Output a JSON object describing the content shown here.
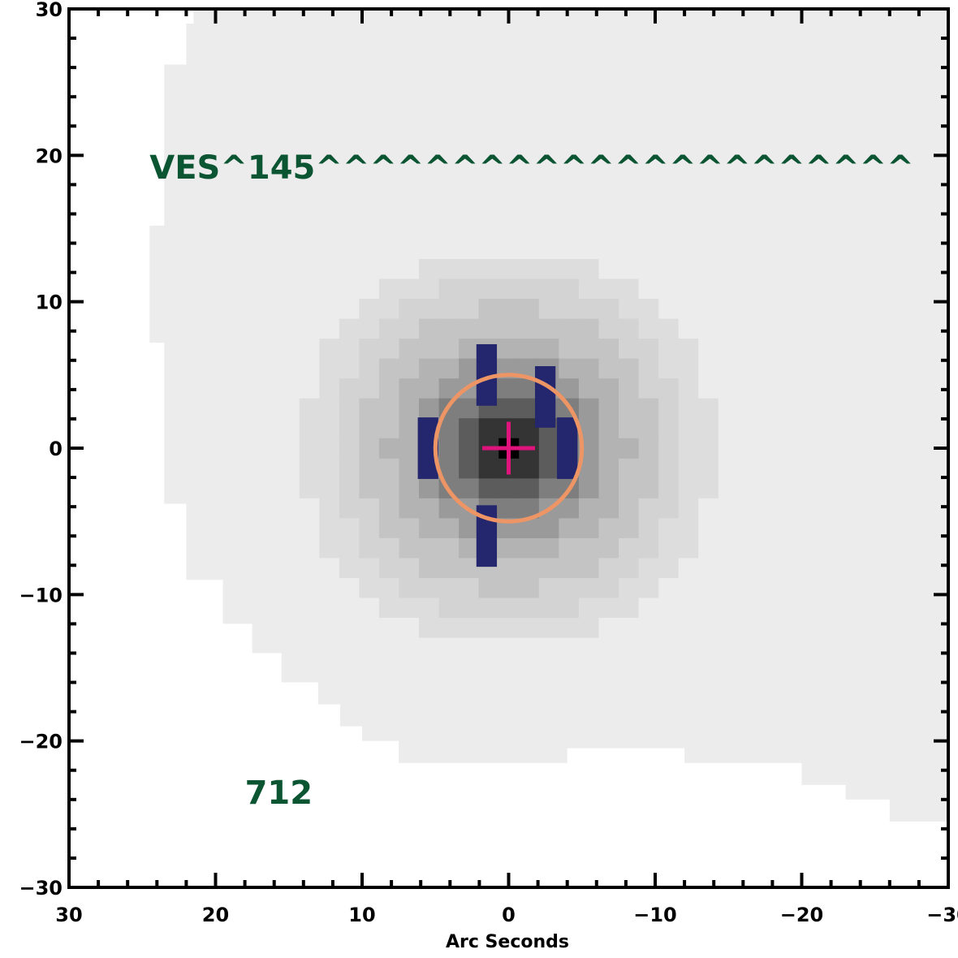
{
  "chart_data": {
    "type": "heatmap",
    "title": "",
    "xlabel": "Arc Seconds",
    "ylabel": "",
    "xlim": [
      30,
      -30
    ],
    "ylim": [
      -30,
      30
    ],
    "xticks": [
      30,
      20,
      10,
      0,
      -10,
      -20,
      -30
    ],
    "yticks": [
      30,
      20,
      10,
      0,
      -10,
      -20,
      -30
    ],
    "xtick_labels": [
      "30",
      "20",
      "10",
      "0",
      "−10",
      "−20",
      "−30"
    ],
    "ytick_labels": [
      "30",
      "20",
      "10",
      "0",
      "−10",
      "−20",
      "−30"
    ],
    "annotations": [
      {
        "text": "VES^145^^^^^^^^^^^^^^^^^^^^^^",
        "x": 24.5,
        "y": 19.2,
        "size": "large"
      },
      {
        "text": "712",
        "x": 18,
        "y": -23.5,
        "size": "large"
      }
    ],
    "background_extent_x": [
      24.5,
      -30
    ],
    "source": {
      "x": 0,
      "y": 0,
      "aperture_radius_arcsec": 5.0
    },
    "contour_levels": [
      {
        "r": 14.2,
        "gray": "#dddddd"
      },
      {
        "r": 12.2,
        "gray": "#d3d3d3"
      },
      {
        "r": 10.2,
        "gray": "#c4c4c4"
      },
      {
        "r": 8.2,
        "gray": "#b3b3b3"
      },
      {
        "r": 6.5,
        "gray": "#9a9a9a"
      },
      {
        "r": 5.0,
        "gray": "#7e7e7e"
      },
      {
        "r": 3.6,
        "gray": "#5c5c5c"
      },
      {
        "r": 2.2,
        "gray": "#343434"
      },
      {
        "r": 1.0,
        "gray": "#000000"
      }
    ],
    "masked_pixels": [
      [
        1.5,
        5.0
      ],
      [
        -2.5,
        3.5
      ],
      [
        -4.0,
        0.0
      ],
      [
        5.5,
        0.0
      ],
      [
        1.5,
        -6.0
      ]
    ],
    "colors": {
      "background_field": "#ececec",
      "mask": "#25276e",
      "aperture": "#ee9565",
      "crosshair": "#e0137c",
      "annotation": "#0b5533"
    }
  }
}
